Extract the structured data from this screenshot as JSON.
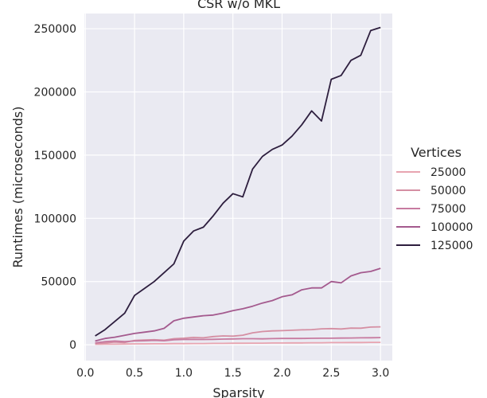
{
  "chart_data": {
    "type": "line",
    "title": "CSR w/o MKL",
    "xlabel": "Sparsity",
    "ylabel": "Runtimes (microseconds)",
    "xlim": [
      -0.01,
      3.12
    ],
    "ylim": [
      -12500,
      262000
    ],
    "xticks": [
      0.0,
      0.5,
      1.0,
      1.5,
      2.0,
      2.5,
      3.0
    ],
    "xtick_labels": [
      "0.0",
      "0.5",
      "1.0",
      "1.5",
      "2.0",
      "2.5",
      "3.0"
    ],
    "yticks": [
      0,
      50000,
      100000,
      150000,
      200000,
      250000
    ],
    "ytick_labels": [
      "0",
      "50000",
      "100000",
      "150000",
      "200000",
      "250000"
    ],
    "grid": true,
    "background": "#eaeaf2",
    "legend": {
      "title": "Vertices",
      "placement": "right"
    },
    "x": [
      0.1,
      0.2,
      0.3,
      0.4,
      0.5,
      0.6,
      0.7,
      0.8,
      0.9,
      1.0,
      1.1,
      1.2,
      1.3,
      1.4,
      1.5,
      1.6,
      1.7,
      1.8,
      1.9,
      2.0,
      2.1,
      2.2,
      2.3,
      2.4,
      2.5,
      2.6,
      2.7,
      2.8,
      2.9,
      3.0
    ],
    "series": [
      {
        "name": "25000",
        "color": "#e8a4b0",
        "values": [
          400,
          500,
          500,
          600,
          700,
          700,
          800,
          800,
          900,
          900,
          1000,
          1000,
          1100,
          1100,
          1200,
          1200,
          1300,
          1300,
          1400,
          1400,
          1500,
          1500,
          1600,
          1600,
          1700,
          1700,
          1800,
          1800,
          1900,
          1900
        ]
      },
      {
        "name": "50000",
        "color": "#d58fa3",
        "values": [
          1000,
          1500,
          2200,
          1800,
          3500,
          3800,
          4000,
          3600,
          4800,
          5200,
          5800,
          5500,
          6500,
          7000,
          6800,
          7600,
          9500,
          10500,
          11000,
          11200,
          11500,
          11800,
          12000,
          12600,
          12800,
          12500,
          13200,
          13100,
          14000,
          14200
        ]
      },
      {
        "name": "75000",
        "color": "#c77ba0",
        "values": [
          1500,
          2500,
          3000,
          2500,
          3000,
          3200,
          3500,
          3200,
          4000,
          4200,
          4300,
          4200,
          4300,
          4500,
          4600,
          4800,
          4800,
          4700,
          4900,
          5000,
          5000,
          5000,
          5100,
          5200,
          5200,
          5300,
          5400,
          5500,
          5600,
          5700
        ]
      },
      {
        "name": "100000",
        "color": "#a45a8e",
        "values": [
          3000,
          5000,
          6000,
          7500,
          9000,
          10000,
          11000,
          13000,
          19000,
          21000,
          22000,
          23000,
          23500,
          25000,
          27000,
          28500,
          30500,
          33000,
          35000,
          38000,
          39500,
          43500,
          45000,
          45000,
          50000,
          49000,
          54500,
          57000,
          58000,
          60500
        ]
      },
      {
        "name": "125000",
        "color": "#2d1e3e",
        "values": [
          7000,
          12000,
          18500,
          25000,
          39000,
          44500,
          50000,
          57000,
          64000,
          82000,
          90000,
          93000,
          102000,
          112000,
          119500,
          117000,
          139000,
          149000,
          154500,
          158000,
          165000,
          174000,
          185000,
          177000,
          210000,
          213000,
          225000,
          229000,
          248500,
          251000
        ]
      }
    ]
  }
}
